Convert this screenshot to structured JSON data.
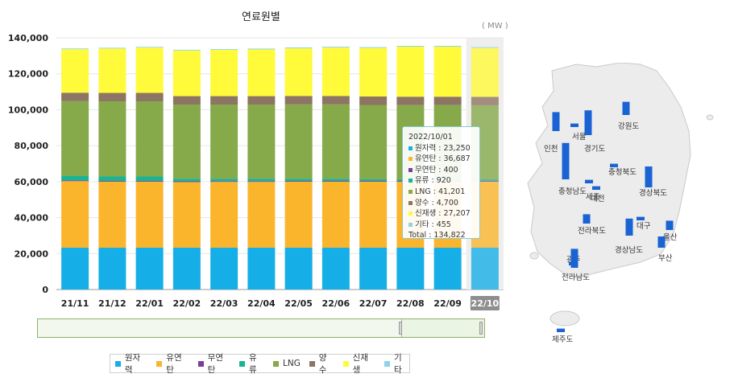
{
  "chart_data": {
    "type": "bar",
    "stacked": true,
    "title": "연료원별",
    "unit": "( MW )",
    "categories": [
      "21/11",
      "21/12",
      "22/01",
      "22/02",
      "22/03",
      "22/04",
      "22/05",
      "22/06",
      "22/07",
      "22/08",
      "22/09",
      "22/10"
    ],
    "y_ticks": [
      "140,000",
      "120,000",
      "100,000",
      "80,000",
      "60,000",
      "40,000",
      "20,000",
      "0"
    ],
    "ylim": [
      0,
      140000
    ],
    "selected_category": "22/10",
    "series": [
      {
        "name": "원자력",
        "color": "#16aee6",
        "values": [
          23250,
          23250,
          23250,
          23250,
          23250,
          23250,
          23250,
          23250,
          23250,
          23250,
          23250,
          23250
        ]
      },
      {
        "name": "유연탄",
        "color": "#fbb52c",
        "values": [
          37000,
          36700,
          36700,
          36500,
          36600,
          36600,
          36700,
          36700,
          36700,
          36700,
          36700,
          36687
        ]
      },
      {
        "name": "무연탄",
        "color": "#7d3c98",
        "values": [
          400,
          400,
          400,
          400,
          400,
          400,
          400,
          400,
          400,
          400,
          400,
          400
        ]
      },
      {
        "name": "유류",
        "color": "#1ab394",
        "values": [
          2600,
          2500,
          2500,
          1500,
          1400,
          1400,
          1300,
          1300,
          1100,
          1000,
          1000,
          920
        ]
      },
      {
        "name": "LNG",
        "color": "#86a94a",
        "values": [
          41500,
          41800,
          41800,
          41200,
          41200,
          41200,
          41300,
          41300,
          41200,
          41200,
          41200,
          41201
        ]
      },
      {
        "name": "양수",
        "color": "#8d7563",
        "values": [
          4700,
          4700,
          4700,
          4700,
          4700,
          4700,
          4700,
          4700,
          4700,
          4700,
          4700,
          4700
        ]
      },
      {
        "name": "신재생",
        "color": "#fffa3a",
        "values": [
          24200,
          24700,
          25200,
          25400,
          25800,
          26000,
          26500,
          26900,
          27000,
          27800,
          27800,
          27207
        ]
      },
      {
        "name": "기타",
        "color": "#8ed3e8",
        "values": [
          400,
          400,
          400,
          400,
          400,
          455,
          455,
          455,
          455,
          455,
          455,
          455
        ]
      }
    ]
  },
  "tooltip": {
    "date": "2022/10/01",
    "rows": [
      {
        "text": "원자력 : 23,250",
        "color": "#16aee6"
      },
      {
        "text": "유연탄 : 36,687",
        "color": "#fbb52c"
      },
      {
        "text": "무연탄 : 400",
        "color": "#7d3c98"
      },
      {
        "text": "유류 : 920",
        "color": "#1ab394"
      },
      {
        "text": "LNG : 41,201",
        "color": "#86a94a"
      },
      {
        "text": "양수 : 4,700",
        "color": "#8d7563"
      },
      {
        "text": "신재생 : 27,207",
        "color": "#fffa3a"
      },
      {
        "text": "기타 : 455",
        "color": "#8ed3e8"
      }
    ],
    "total": "Total : 134,822"
  },
  "legend": [
    {
      "label": "원자력",
      "color": "#16aee6"
    },
    {
      "label": "유연탄",
      "color": "#fbb52c"
    },
    {
      "label": "무연탄",
      "color": "#7d3c98"
    },
    {
      "label": "유류",
      "color": "#1ab394"
    },
    {
      "label": "LNG",
      "color": "#86a94a"
    },
    {
      "label": "양수",
      "color": "#8d7563"
    },
    {
      "label": "신재생",
      "color": "#fffa3a"
    },
    {
      "label": "기타",
      "color": "#8ed3e8"
    }
  ],
  "map": {
    "bar_color": "#1a63d4",
    "regions": [
      {
        "name": "인천",
        "capacity_level": 0.45
      },
      {
        "name": "서울",
        "capacity_level": 0.05
      },
      {
        "name": "경기도",
        "capacity_level": 0.6
      },
      {
        "name": "강원도",
        "capacity_level": 0.3
      },
      {
        "name": "세종",
        "capacity_level": 0.05
      },
      {
        "name": "충청북도",
        "capacity_level": 0.05
      },
      {
        "name": "대전",
        "capacity_level": 0.05
      },
      {
        "name": "충청남도",
        "capacity_level": 0.9
      },
      {
        "name": "경상북도",
        "capacity_level": 0.5
      },
      {
        "name": "전라북도",
        "capacity_level": 0.2
      },
      {
        "name": "대구",
        "capacity_level": 0.05
      },
      {
        "name": "울산",
        "capacity_level": 0.2
      },
      {
        "name": "경상남도",
        "capacity_level": 0.4
      },
      {
        "name": "부산",
        "capacity_level": 0.25
      },
      {
        "name": "광주",
        "capacity_level": 0.05
      },
      {
        "name": "전라남도",
        "capacity_level": 0.45
      },
      {
        "name": "제주도",
        "capacity_level": 0.05
      }
    ]
  }
}
